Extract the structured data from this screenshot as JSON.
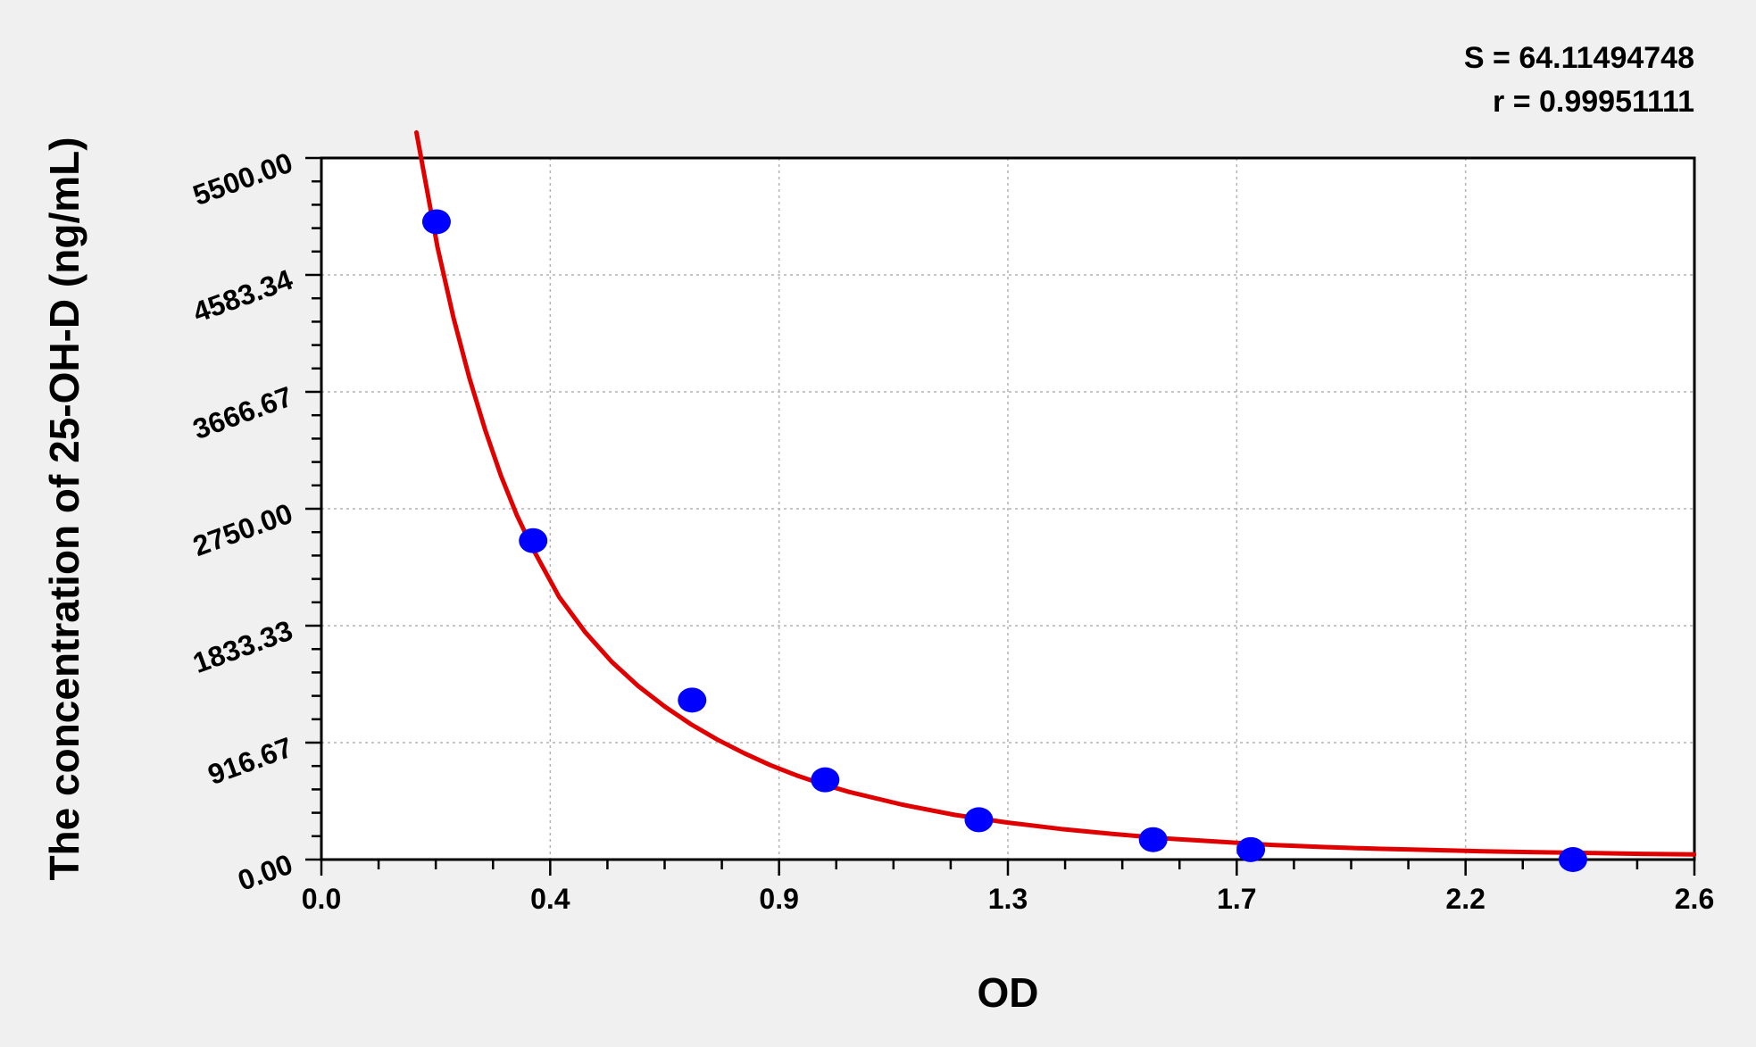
{
  "chart_data": {
    "type": "scatter",
    "xlabel": "OD",
    "ylabel": "The concentration of 25-OH-D (ng/mL)",
    "xlim": [
      0,
      2.6
    ],
    "ylim": [
      0,
      5500
    ],
    "x_ticks": [
      "0.0",
      "0.4",
      "0.9",
      "1.3",
      "1.7",
      "2.2",
      "2.6"
    ],
    "y_ticks": [
      "0.00",
      "916.67",
      "1833.33",
      "2750.00",
      "3666.67",
      "4583.34",
      "5500.00"
    ],
    "grid": true,
    "stats": {
      "s_text": "S = 64.11494748",
      "r_text": "r = 0.99951111"
    },
    "series": [
      {
        "kind": "points",
        "color": "#0000ff",
        "x": [
          0.218,
          0.401,
          0.702,
          0.954,
          1.245,
          1.575,
          1.76,
          2.37
        ],
        "y": [
          5000,
          2500,
          1250,
          625,
          312,
          156,
          78,
          0
        ]
      },
      {
        "kind": "fit-curve",
        "color": "#e00000",
        "x": [
          0.18,
          0.2,
          0.22,
          0.25,
          0.28,
          0.31,
          0.34,
          0.37,
          0.4,
          0.45,
          0.5,
          0.55,
          0.6,
          0.65,
          0.7,
          0.75,
          0.8,
          0.85,
          0.9,
          0.95,
          1.0,
          1.1,
          1.2,
          1.3,
          1.4,
          1.5,
          1.6,
          1.7,
          1.8,
          1.9,
          2.0,
          2.1,
          2.2,
          2.3,
          2.4,
          2.5,
          2.6
        ],
        "y": [
          5700,
          5250,
          4800,
          4250,
          3780,
          3370,
          3010,
          2700,
          2440,
          2060,
          1780,
          1550,
          1360,
          1200,
          1060,
          940,
          835,
          740,
          660,
          590,
          530,
          430,
          350,
          290,
          240,
          200,
          165,
          140,
          115,
          98,
          85,
          75,
          65,
          58,
          52,
          45,
          40
        ]
      }
    ]
  }
}
